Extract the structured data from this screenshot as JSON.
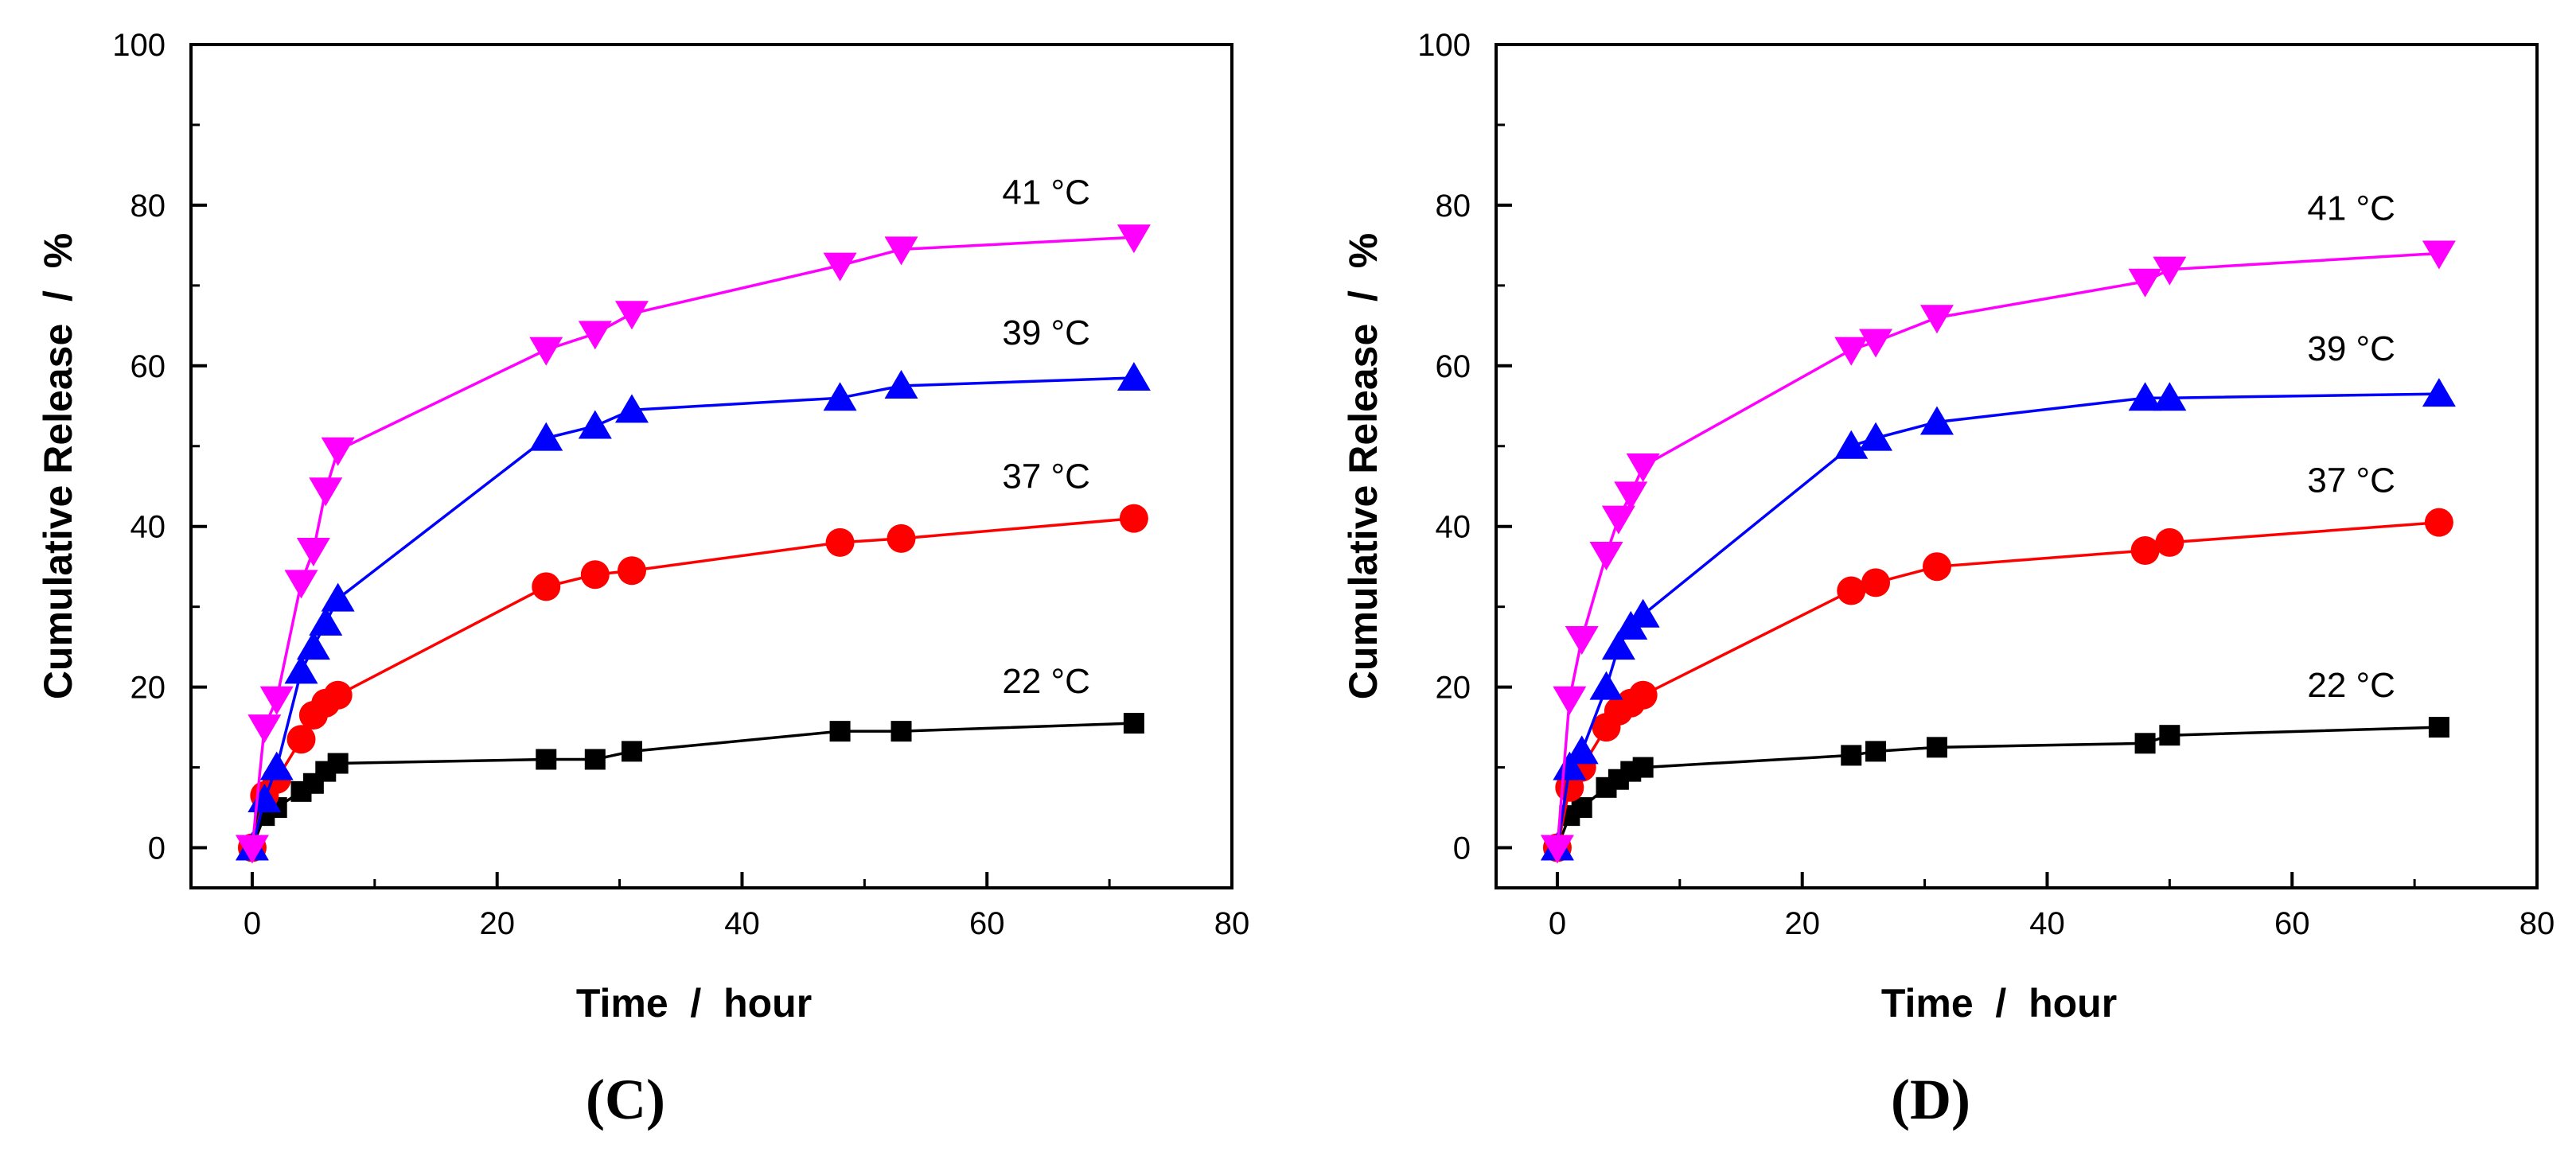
{
  "chart_data": [
    {
      "type": "line",
      "panel_label": "(C)",
      "xlabel": "Time  /  hour",
      "ylabel": "Cumulative Release  /  %",
      "xlim": [
        -5,
        80
      ],
      "ylim": [
        -5,
        100
      ],
      "xticks": [
        "0",
        "20",
        "40",
        "60",
        "80"
      ],
      "yticks": [
        "0",
        "20",
        "40",
        "60",
        "80",
        "100"
      ],
      "series": [
        {
          "name": "22 °C",
          "label_text": "22 °C",
          "marker": "square",
          "color": "#000000",
          "x": [
            0,
            1,
            2,
            4,
            5,
            6,
            7,
            24,
            28,
            31,
            48,
            53,
            72
          ],
          "y": [
            0,
            4,
            5,
            7,
            8,
            9.5,
            10.5,
            11,
            11,
            12,
            14.5,
            14.5,
            15.5
          ]
        },
        {
          "name": "37 °C",
          "label_text": "37 °C",
          "marker": "circle",
          "color": "#ff0000",
          "x": [
            0,
            1,
            2,
            4,
            5,
            6,
            7,
            24,
            28,
            31,
            48,
            53,
            72
          ],
          "y": [
            0,
            6.5,
            8.5,
            13.5,
            16.5,
            18,
            19,
            32.5,
            34,
            34.5,
            38,
            38.5,
            41
          ]
        },
        {
          "name": "39 °C",
          "label_text": "39 °C",
          "marker": "triangle-up",
          "color": "#0000ff",
          "x": [
            0,
            1,
            2,
            4,
            5,
            6,
            7,
            24,
            28,
            31,
            48,
            53,
            72
          ],
          "y": [
            0,
            6,
            10,
            22,
            25,
            28,
            31,
            51,
            52.5,
            54.5,
            56,
            57.5,
            58.5
          ]
        },
        {
          "name": "41 °C",
          "label_text": "41 °C",
          "marker": "triangle-down",
          "color": "#ff00ff",
          "x": [
            0,
            1,
            2,
            4,
            5,
            6,
            7,
            24,
            28,
            31,
            48,
            53,
            72
          ],
          "y": [
            0,
            15,
            18.5,
            33,
            37,
            44.5,
            49.5,
            62,
            64,
            66.5,
            72.5,
            74.5,
            76
          ]
        }
      ]
    },
    {
      "type": "line",
      "panel_label": "(D)",
      "xlabel": "Time  /  hour",
      "ylabel": "Cumulative Release  /  %",
      "xlim": [
        -5,
        80
      ],
      "ylim": [
        -5,
        100
      ],
      "xticks": [
        "0",
        "20",
        "40",
        "60",
        "80"
      ],
      "yticks": [
        "0",
        "20",
        "40",
        "60",
        "80",
        "100"
      ],
      "series": [
        {
          "name": "22 °C",
          "label_text": "22 °C",
          "marker": "square",
          "color": "#000000",
          "x": [
            0,
            1,
            2,
            4,
            5,
            6,
            7,
            24,
            26,
            31,
            48,
            50,
            72
          ],
          "y": [
            0,
            4,
            5,
            7.5,
            8.5,
            9.5,
            10,
            11.5,
            12,
            12.5,
            13,
            14,
            15
          ]
        },
        {
          "name": "37 °C",
          "label_text": "37 °C",
          "marker": "circle",
          "color": "#ff0000",
          "x": [
            0,
            1,
            2,
            4,
            5,
            6,
            7,
            24,
            26,
            31,
            48,
            50,
            72
          ],
          "y": [
            0,
            7.5,
            10,
            15,
            17,
            18,
            19,
            32,
            33,
            35,
            37,
            38,
            40.5
          ]
        },
        {
          "name": "39 °C",
          "label_text": "39 °C",
          "marker": "triangle-up",
          "color": "#0000ff",
          "x": [
            0,
            1,
            2,
            4,
            5,
            6,
            7,
            24,
            26,
            31,
            48,
            50,
            72
          ],
          "y": [
            0,
            10,
            12,
            20,
            25,
            27.5,
            29,
            50,
            51,
            53,
            56,
            56,
            56.5
          ]
        },
        {
          "name": "41 °C",
          "label_text": "41 °C",
          "marker": "triangle-down",
          "color": "#ff00ff",
          "x": [
            0,
            1,
            2,
            4,
            5,
            6,
            7,
            24,
            26,
            31,
            48,
            50,
            72
          ],
          "y": [
            0,
            18.5,
            26,
            36.5,
            41,
            44,
            47.5,
            62,
            63,
            66,
            70.5,
            72,
            74
          ]
        }
      ]
    }
  ]
}
